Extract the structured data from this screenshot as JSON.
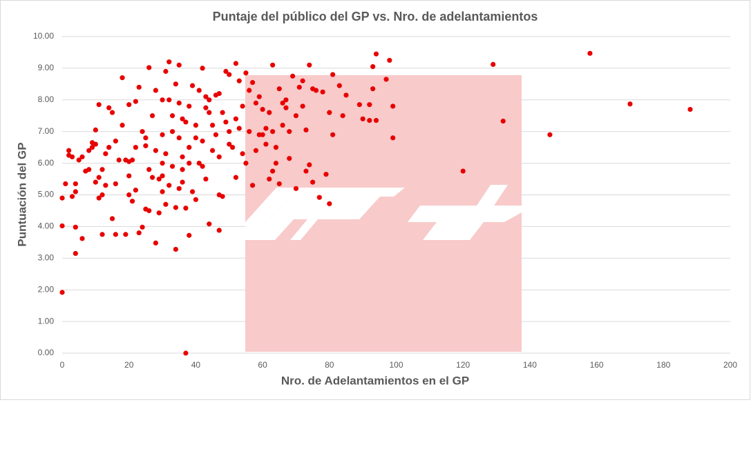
{
  "chart_data": {
    "type": "scatter",
    "title": "Puntaje del público del GP vs. Nro. de adelantamientos",
    "x_label": "Nro. de Adelantamientos en el GP",
    "y_label": "Puntuación del GP",
    "xlim": [
      0,
      200
    ],
    "xticks": [
      0,
      20,
      40,
      60,
      80,
      100,
      120,
      140,
      160,
      180,
      200
    ],
    "ylim": [
      0,
      10
    ],
    "yticks": [
      {
        "value": 0,
        "label": "0.00"
      },
      {
        "value": 1,
        "label": "1.00"
      },
      {
        "value": 2,
        "label": "2.00"
      },
      {
        "value": 3,
        "label": "3.00"
      },
      {
        "value": 4,
        "label": "4.00"
      },
      {
        "value": 5,
        "label": "5.00"
      },
      {
        "value": 6,
        "label": "6.00"
      },
      {
        "value": 7,
        "label": "7.00"
      },
      {
        "value": 8,
        "label": "8.00"
      },
      {
        "value": 9,
        "label": "9.00"
      },
      {
        "value": 10,
        "label": "10.00"
      }
    ],
    "grid": true,
    "color": "#e80000",
    "x": [
      0,
      0,
      0,
      37,
      1,
      2,
      2,
      3,
      4,
      4,
      3,
      4,
      4,
      6,
      5,
      6,
      7,
      8,
      9,
      9,
      10,
      10,
      11,
      11,
      11,
      12,
      12,
      13,
      13,
      14,
      15,
      15,
      16,
      16,
      17,
      18,
      19,
      19,
      20,
      20,
      21,
      22,
      22,
      23,
      23,
      24,
      25,
      25,
      26,
      26,
      27,
      28,
      29,
      30,
      30,
      31,
      31,
      32,
      32,
      33,
      34,
      35,
      35,
      36,
      37,
      37,
      38,
      39,
      40,
      41,
      42,
      42,
      43,
      44,
      45,
      46,
      47,
      47,
      48,
      49,
      50,
      51,
      52,
      52,
      53,
      54,
      55,
      56,
      57,
      57,
      58,
      59,
      60,
      61,
      62,
      63,
      63,
      64,
      65,
      65,
      66,
      67,
      68,
      69,
      70,
      70,
      71,
      72,
      73,
      73,
      74,
      74,
      75,
      75,
      76,
      77,
      78,
      79,
      80,
      80,
      81,
      81,
      83,
      84,
      85,
      89,
      90,
      92,
      92,
      93,
      93,
      94,
      94,
      97,
      98,
      99,
      99,
      120,
      129,
      132,
      146,
      158,
      170,
      188,
      30,
      33,
      35,
      38,
      40,
      42,
      44,
      36,
      28,
      32,
      26,
      24,
      22,
      20,
      38,
      41,
      45,
      48,
      50,
      52,
      55,
      58,
      60,
      62,
      64,
      66,
      68,
      34,
      36,
      30,
      29,
      27,
      31,
      33,
      39,
      43,
      46,
      49,
      53,
      56,
      18,
      14,
      16,
      12,
      10,
      8,
      20,
      28,
      30,
      34,
      36,
      38,
      40,
      44,
      47,
      50,
      54,
      59,
      61,
      63,
      67,
      72,
      35,
      25,
      21,
      43,
      47
    ],
    "values": [
      4.9,
      4.02,
      1.92,
      0,
      5.35,
      6.4,
      6.25,
      6.2,
      5.35,
      5.1,
      4.95,
      3.98,
      3.15,
      3.62,
      6.1,
      6.2,
      5.75,
      5.8,
      6.65,
      6.5,
      7.05,
      6.6,
      7.85,
      5.55,
      4.9,
      3.75,
      5.0,
      5.3,
      6.3,
      7.75,
      7.6,
      4.25,
      5.35,
      3.75,
      6.1,
      8.7,
      3.75,
      6.1,
      7.85,
      6.05,
      4.8,
      5.15,
      7.95,
      8.4,
      3.8,
      3.98,
      6.55,
      4.55,
      9.02,
      4.5,
      5.55,
      3.48,
      4.43,
      6.0,
      5.1,
      4.7,
      8.9,
      9.2,
      8.0,
      7.0,
      3.28,
      9.1,
      5.2,
      5.4,
      7.3,
      4.58,
      3.72,
      8.45,
      4.85,
      8.3,
      9.0,
      5.9,
      7.75,
      4.08,
      7.2,
      8.15,
      5.0,
      3.88,
      4.95,
      8.9,
      8.8,
      6.5,
      9.15,
      5.55,
      7.1,
      6.3,
      8.85,
      8.3,
      8.55,
      5.3,
      7.9,
      6.9,
      7.7,
      7.1,
      5.5,
      9.1,
      5.75,
      6.5,
      8.35,
      5.35,
      7.9,
      7.75,
      6.15,
      8.75,
      7.5,
      5.2,
      8.4,
      8.6,
      7.05,
      5.75,
      9.1,
      5.95,
      8.35,
      5.4,
      8.3,
      4.92,
      8.25,
      5.65,
      4.72,
      7.6,
      6.9,
      8.8,
      8.45,
      7.5,
      8.15,
      7.85,
      7.4,
      7.35,
      7.85,
      9.05,
      8.35,
      9.45,
      7.35,
      8.65,
      9.25,
      7.8,
      6.8,
      5.75,
      9.12,
      7.33,
      6.9,
      9.47,
      7.87,
      7.7,
      8.0,
      7.5,
      6.8,
      6.5,
      7.2,
      6.7,
      8.0,
      6.2,
      6.4,
      5.3,
      5.8,
      7.0,
      6.5,
      5.6,
      7.8,
      6.0,
      6.4,
      7.6,
      6.6,
      7.4,
      6.0,
      6.4,
      6.9,
      7.6,
      6.0,
      7.2,
      7.0,
      8.5,
      7.4,
      6.9,
      5.5,
      7.5,
      6.3,
      5.9,
      5.1,
      5.5,
      6.9,
      7.3,
      8.6,
      7.0,
      7.2,
      6.5,
      6.7,
      5.8,
      5.4,
      6.4,
      5.0,
      8.3,
      5.6,
      4.6,
      5.8,
      6.0,
      6.8,
      7.6,
      8.2,
      7.0,
      7.8,
      8.1,
      6.6,
      7.0,
      8.0,
      7.8,
      7.9,
      6.8,
      6.1,
      8.1,
      6.2
    ]
  }
}
